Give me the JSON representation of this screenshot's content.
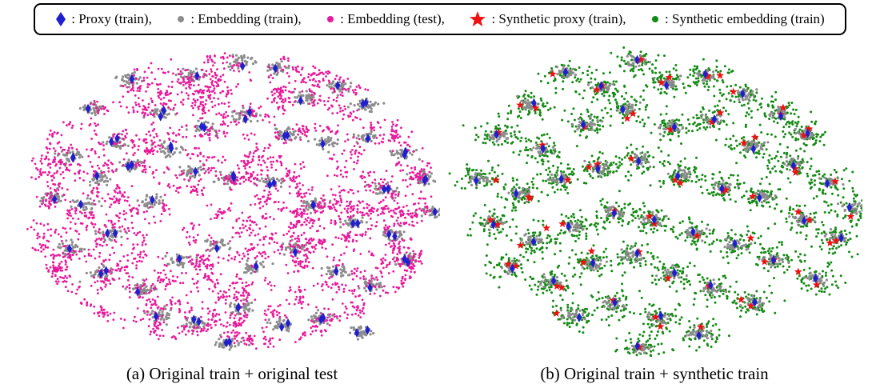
{
  "legend": [
    {
      "label": ": Proxy (train),",
      "color": "#1f1fd0",
      "marker": "diamond-icon"
    },
    {
      "label": ": Embedding (train),",
      "color": "#8c8c8c",
      "marker": "dot-icon"
    },
    {
      "label": ": Embedding (test),",
      "color": "#e8199a",
      "marker": "dot-icon"
    },
    {
      "label": ": Synthetic proxy (train),",
      "color": "#ee1111",
      "marker": "star-icon"
    },
    {
      "label": ": Synthetic embedding (train)",
      "color": "#138a13",
      "marker": "dot-icon"
    }
  ],
  "chart_data": [
    {
      "type": "scatter",
      "caption": "(a) Original train + original test",
      "series": [
        {
          "name": "Proxy (train)",
          "color": "#1f1fd0",
          "marker": "diamond"
        },
        {
          "name": "Embedding (train)",
          "color": "#8c8c8c",
          "marker": "dot"
        },
        {
          "name": "Embedding (test)",
          "color": "#e8199a",
          "marker": "dot"
        }
      ],
      "clusters": [
        [
          -2.3,
          3.3
        ],
        [
          -1.6,
          2.4
        ],
        [
          -0.9,
          3.4
        ],
        [
          0.2,
          3.8
        ],
        [
          1.0,
          3.6
        ],
        [
          1.6,
          2.8
        ],
        [
          2.4,
          3.1
        ],
        [
          3.0,
          2.6
        ],
        [
          -3.1,
          2.5
        ],
        [
          -2.6,
          1.6
        ],
        [
          -3.6,
          1.2
        ],
        [
          -3.0,
          0.6
        ],
        [
          -4.0,
          0.1
        ],
        [
          -3.3,
          -0.1
        ],
        [
          -2.2,
          1.0
        ],
        [
          -1.4,
          1.4
        ],
        [
          -0.6,
          2.0
        ],
        [
          0.3,
          2.3
        ],
        [
          1.2,
          1.8
        ],
        [
          2.1,
          1.6
        ],
        [
          3.0,
          1.7
        ],
        [
          3.8,
          1.3
        ],
        [
          4.3,
          0.6
        ],
        [
          3.4,
          0.3
        ],
        [
          4.5,
          -0.3
        ],
        [
          3.6,
          -0.9
        ],
        [
          2.7,
          -0.6
        ],
        [
          1.8,
          -0.1
        ],
        [
          0.9,
          0.5
        ],
        [
          0.0,
          0.6
        ],
        [
          -0.9,
          0.8
        ],
        [
          -1.8,
          0.0
        ],
        [
          -2.7,
          -0.9
        ],
        [
          -3.6,
          -1.3
        ],
        [
          -2.9,
          -2.0
        ],
        [
          -2.0,
          -2.4
        ],
        [
          -1.2,
          -1.6
        ],
        [
          -0.3,
          -1.2
        ],
        [
          0.5,
          -1.8
        ],
        [
          1.4,
          -1.3
        ],
        [
          2.3,
          -1.9
        ],
        [
          3.1,
          -2.3
        ],
        [
          3.9,
          -1.6
        ],
        [
          -1.6,
          -3.1
        ],
        [
          -0.8,
          -3.3
        ],
        [
          0.2,
          -2.9
        ],
        [
          1.1,
          -3.4
        ],
        [
          2.0,
          -3.2
        ],
        [
          2.9,
          -3.6
        ],
        [
          -0.1,
          -3.9
        ]
      ],
      "test_points": 3400
    },
    {
      "type": "scatter",
      "caption": "(b) Original train + synthetic train",
      "series": [
        {
          "name": "Proxy (train)",
          "color": "#1f1fd0",
          "marker": "diamond"
        },
        {
          "name": "Embedding (train)",
          "color": "#8c8c8c",
          "marker": "dot"
        },
        {
          "name": "Synthetic proxy (train)",
          "color": "#ee1111",
          "marker": "star"
        },
        {
          "name": "Synthetic embedding (train)",
          "color": "#138a13",
          "marker": "dot"
        }
      ],
      "clusters": [
        [
          -2.0,
          3.5
        ],
        [
          -1.2,
          3.1
        ],
        [
          -0.4,
          3.8
        ],
        [
          0.3,
          3.2
        ],
        [
          1.2,
          3.4
        ],
        [
          2.0,
          2.9
        ],
        [
          2.8,
          2.4
        ],
        [
          3.4,
          1.8
        ],
        [
          -2.8,
          2.6
        ],
        [
          -3.5,
          1.8
        ],
        [
          -2.5,
          1.4
        ],
        [
          -1.5,
          2.1
        ],
        [
          -0.6,
          2.5
        ],
        [
          0.4,
          2.0
        ],
        [
          1.3,
          2.2
        ],
        [
          2.2,
          1.5
        ],
        [
          3.1,
          1.0
        ],
        [
          3.9,
          0.5
        ],
        [
          4.4,
          -0.2
        ],
        [
          -3.9,
          0.6
        ],
        [
          -3.0,
          0.2
        ],
        [
          -2.1,
          0.6
        ],
        [
          -1.2,
          0.9
        ],
        [
          -0.3,
          1.1
        ],
        [
          0.6,
          0.7
        ],
        [
          1.5,
          0.4
        ],
        [
          2.4,
          0.1
        ],
        [
          3.3,
          -0.5
        ],
        [
          4.1,
          -1.0
        ],
        [
          -3.6,
          -0.6
        ],
        [
          -2.7,
          -1.1
        ],
        [
          -1.8,
          -0.7
        ],
        [
          -0.9,
          -0.3
        ],
        [
          0.0,
          -0.5
        ],
        [
          0.9,
          -0.9
        ],
        [
          1.8,
          -1.2
        ],
        [
          2.7,
          -1.6
        ],
        [
          3.6,
          -2.1
        ],
        [
          -3.2,
          -1.8
        ],
        [
          -2.3,
          -2.2
        ],
        [
          -1.4,
          -1.7
        ],
        [
          -0.5,
          -1.5
        ],
        [
          0.4,
          -2.0
        ],
        [
          1.3,
          -2.4
        ],
        [
          2.2,
          -2.8
        ],
        [
          -1.8,
          -3.1
        ],
        [
          -0.9,
          -2.8
        ],
        [
          0.1,
          -3.2
        ],
        [
          1.0,
          -3.6
        ],
        [
          -0.3,
          -4.0
        ]
      ]
    }
  ]
}
